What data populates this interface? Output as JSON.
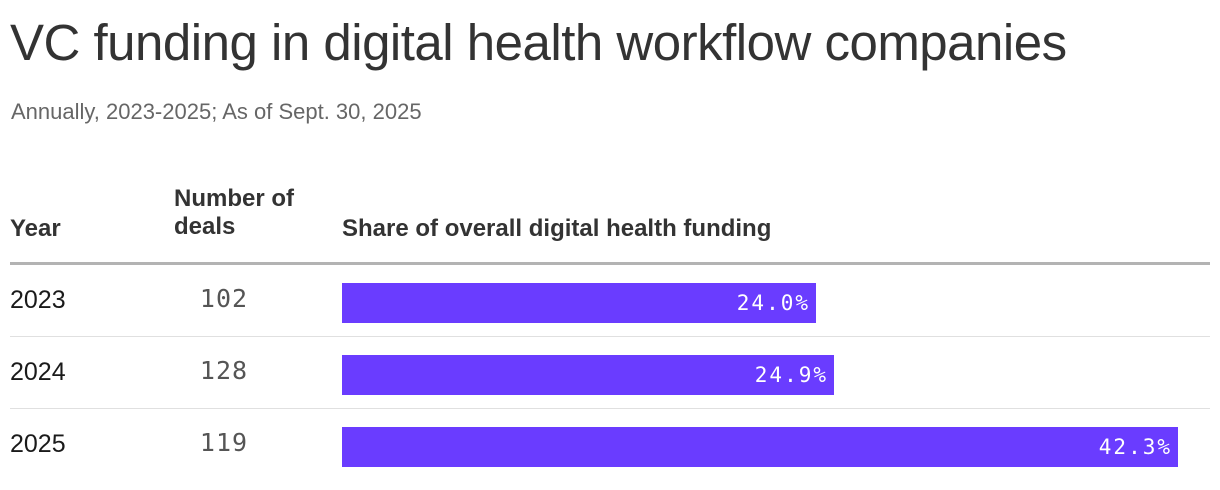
{
  "title": "VC funding in digital health workflow companies",
  "subtitle": "Annually, 2023-2025; As of Sept. 30, 2025",
  "columns": {
    "year": "Year",
    "deals": "Number of deals",
    "share": "Share of overall digital health funding"
  },
  "colors": {
    "bar": "#6a3cff",
    "bar_label": "#ffffff",
    "header_rule": "#b3b3b3",
    "row_divider": "#e0e0e0"
  },
  "chart_data": {
    "type": "table",
    "title": "VC funding in digital health workflow companies",
    "subtitle": "Annually, 2023-2025; As of Sept. 30, 2025",
    "columns": [
      "Year",
      "Number of deals",
      "Share of overall digital health funding"
    ],
    "xlim": [
      0,
      42.3
    ],
    "rows": [
      {
        "year": "2023",
        "deals": "102",
        "share": 24.0,
        "share_label": "24.0%"
      },
      {
        "year": "2024",
        "deals": "128",
        "share": 24.9,
        "share_label": "24.9%"
      },
      {
        "year": "2025",
        "deals": "119",
        "share": 42.3,
        "share_label": "42.3%"
      }
    ]
  }
}
